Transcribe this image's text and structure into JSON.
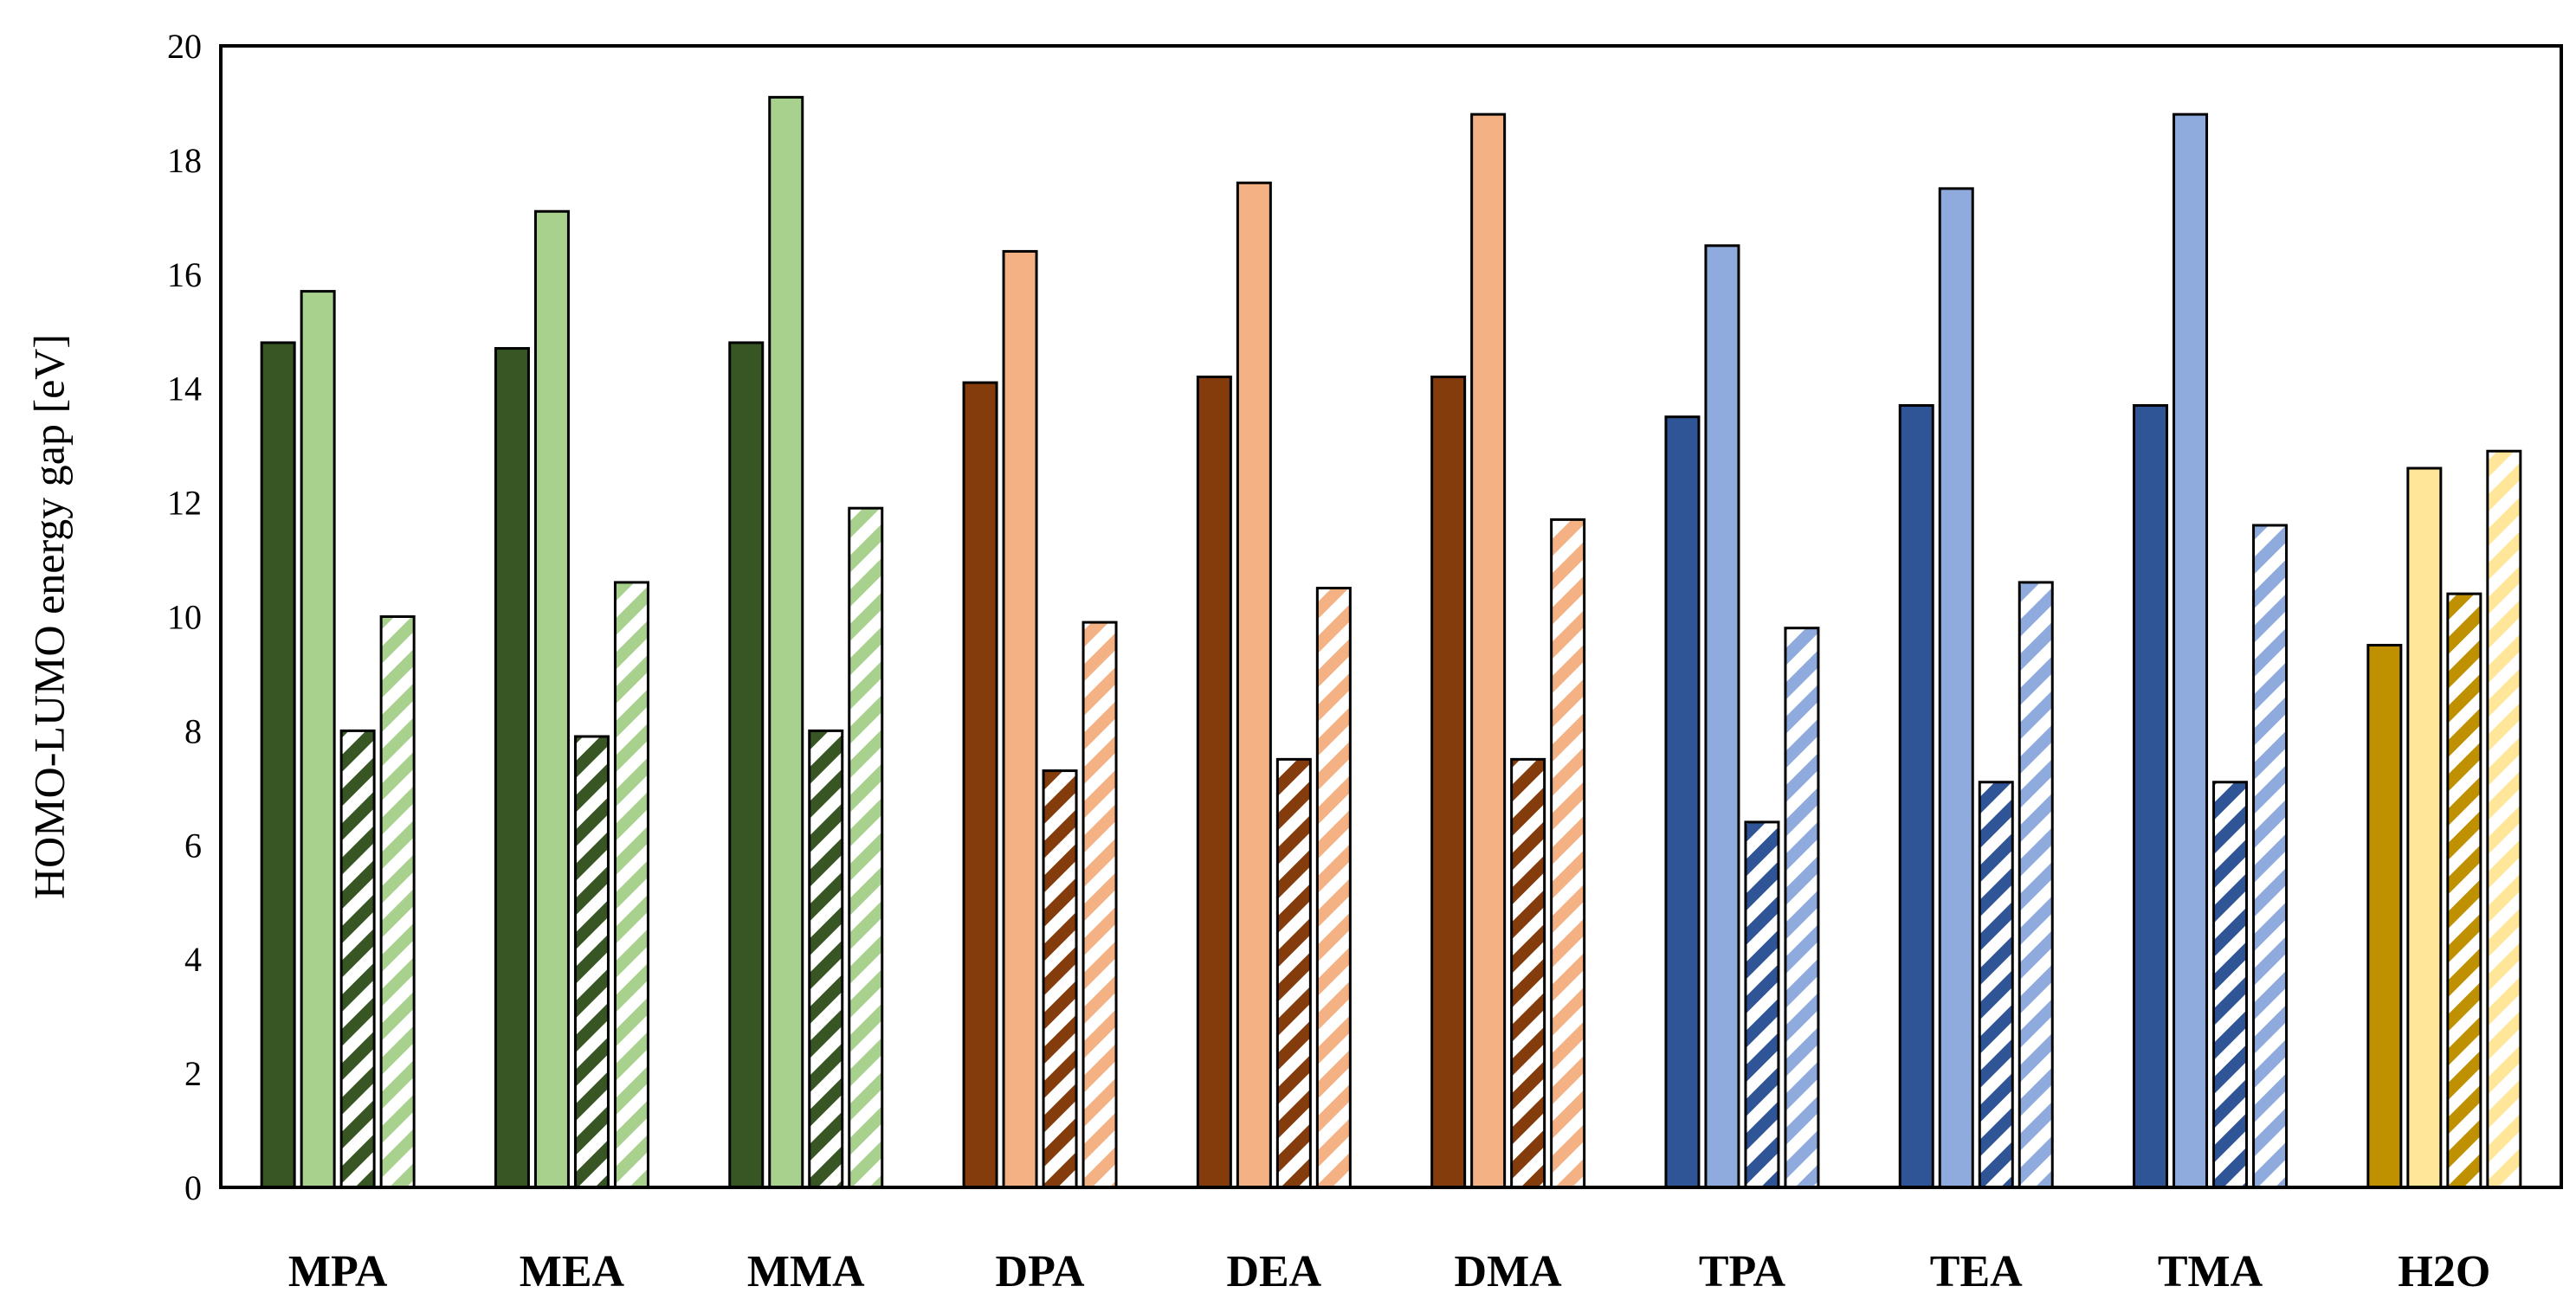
{
  "chart_data": {
    "type": "bar",
    "title": "",
    "xlabel": "",
    "ylabel": "HOMO-LUMO energy gap [eV]",
    "ylim": [
      0,
      20
    ],
    "yticks": [
      0,
      2,
      4,
      6,
      8,
      10,
      12,
      14,
      16,
      18,
      20
    ],
    "legend": "none",
    "categories": [
      "MPA",
      "MEA",
      "MMA",
      "DPA",
      "DEA",
      "DMA",
      "TPA",
      "TEA",
      "TMA",
      "H2O"
    ],
    "series": [
      {
        "name": "series-1-solid-dark",
        "values": [
          14.8,
          14.7,
          14.8,
          14.1,
          14.2,
          14.2,
          13.5,
          13.7,
          13.7,
          9.5
        ]
      },
      {
        "name": "series-2-solid-light",
        "values": [
          15.7,
          17.1,
          19.1,
          16.4,
          17.6,
          18.8,
          16.5,
          17.5,
          18.8,
          12.6
        ]
      },
      {
        "name": "series-3-hatched-dark",
        "values": [
          8.0,
          7.9,
          8.0,
          7.3,
          7.5,
          7.5,
          6.4,
          7.1,
          7.1,
          10.4
        ]
      },
      {
        "name": "series-4-hatched-light",
        "values": [
          10.0,
          10.6,
          11.9,
          9.9,
          10.5,
          11.7,
          9.8,
          10.6,
          11.6,
          12.9
        ]
      }
    ],
    "group_colors": {
      "dark": [
        "#375623",
        "#375623",
        "#375623",
        "#843C0C",
        "#843C0C",
        "#843C0C",
        "#2F5597",
        "#2F5597",
        "#2F5597",
        "#BF9000"
      ],
      "light": [
        "#A9D18E",
        "#A9D18E",
        "#A9D18E",
        "#F4B183",
        "#F4B183",
        "#F4B183",
        "#8FAADC",
        "#8FAADC",
        "#8FAADC",
        "#FFE699"
      ]
    },
    "grid": false
  }
}
